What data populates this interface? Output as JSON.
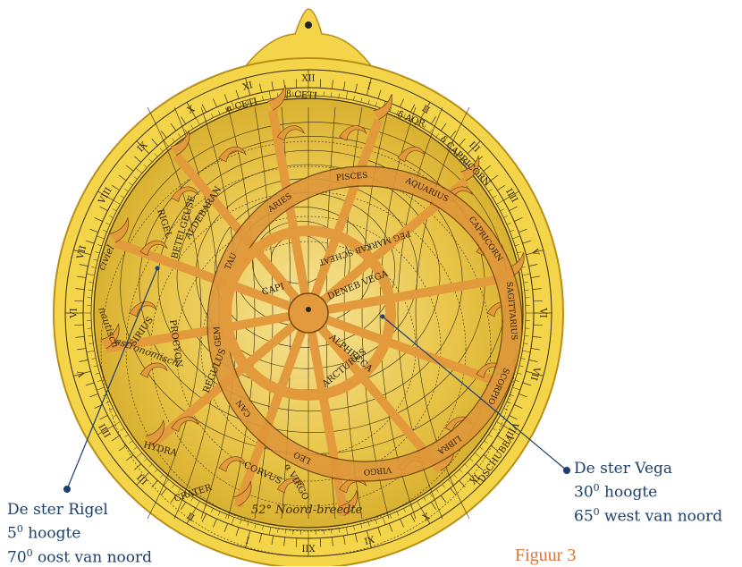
{
  "hours_outer": [
    "XII",
    "I",
    "II",
    "III",
    "IIII",
    "V",
    "VI",
    "VII",
    "VIII",
    "IX",
    "X",
    "XI",
    "XII",
    "I",
    "II",
    "III",
    "IIII",
    "V",
    "VI",
    "VII",
    "VIII",
    "IX",
    "X",
    "XI"
  ],
  "zodiac": [
    "PISCES",
    "AQUARIUS",
    "CAPRICORN",
    "SAGITTARIUS",
    "SCORPIO",
    "LIBRA",
    "VIRGO",
    "LEO",
    "CAN",
    "GEM",
    "TAU",
    "ARIES"
  ],
  "stars": {
    "rigel": "RIGEL",
    "aldebaran": "ALDEBARAN",
    "betelgeuse": "BETELGEUSE",
    "procyon": "PROCYON",
    "sirius": "SIRIUS",
    "regulus": "REGULUS",
    "hydra": "HYDRA",
    "corvus": "CORVUS",
    "crater": "CRATER",
    "virgo_star": "α VIRGO",
    "ceti": "β CETI",
    "ceti2": "α CETI",
    "aqr": "δ AQR",
    "capricorn_star": "δ CAPRICORN",
    "vega": "DENEB VEGA",
    "arcturus": "ARCTURUS",
    "alphecca": "ALPHECCA",
    "capella": "CAPI",
    "markab": "PEG MARKAB SCHEAT",
    "dschubba": "DSCHUBBA"
  },
  "plate_labels": {
    "civiel": "civiel",
    "nautisch": "nautisch",
    "astronomisch": "astronomisch",
    "breedte": "52° Noord-breedte"
  },
  "annotations": {
    "rigel_title": "De ster Rigel",
    "rigel_alt_num": "5",
    "rigel_alt_sup": "0",
    "rigel_alt_text": " hoogte",
    "rigel_az_num": "70",
    "rigel_az_sup": "0",
    "rigel_az_text": " oost van noord",
    "vega_title": "De ster Vega",
    "vega_alt_num": "30",
    "vega_alt_sup": "0",
    "vega_alt_text": " hoogte",
    "vega_az_num": "65",
    "vega_az_sup": "0",
    "vega_az_text": " west van noord"
  },
  "figure_caption": "Figuur 3",
  "colors": {
    "gold": "#f4d54a",
    "gold_dark": "#c9a21f",
    "rete": "#e39a3c",
    "rete_edge": "#7a4a12",
    "line": "#3a2a0e",
    "annotation": "#1d3f6e"
  }
}
